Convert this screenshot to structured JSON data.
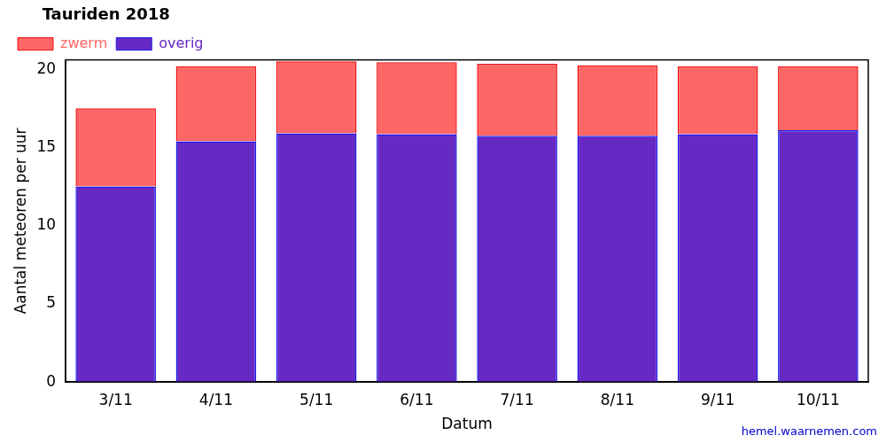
{
  "chart_data": {
    "type": "bar",
    "title": "Tauriden 2018",
    "x_label": "Datum",
    "y_label": "Aantal meteoren per uur",
    "annotation": "hemel.waarnemen.com",
    "categories": [
      "3/11",
      "4/11",
      "5/11",
      "6/11",
      "7/11",
      "8/11",
      "9/11",
      "10/11"
    ],
    "series": [
      {
        "name": "overig",
        "color": "#6629c4",
        "values": [
          12.5,
          15.4,
          15.9,
          15.85,
          15.75,
          15.75,
          15.85,
          16.1
        ]
      },
      {
        "name": "zwerm",
        "color": "#ff6666",
        "values": [
          5.0,
          4.8,
          4.6,
          4.6,
          4.6,
          4.5,
          4.35,
          4.1
        ]
      }
    ],
    "stacked": true,
    "ylim": [
      0,
      20.6
    ],
    "yticks": [
      0,
      5,
      10,
      15,
      20
    ],
    "grid": false,
    "legend": "top-left"
  }
}
